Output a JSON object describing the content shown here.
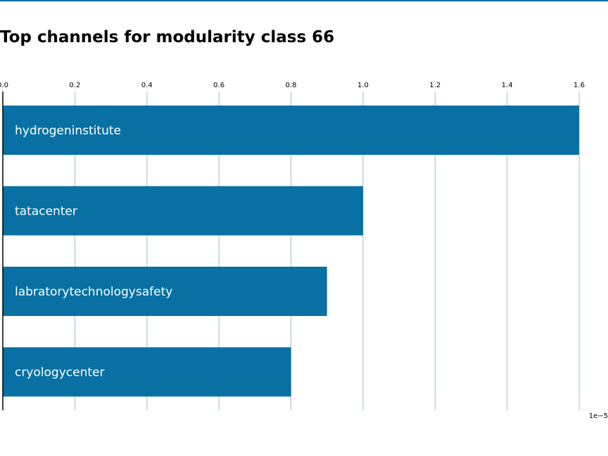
{
  "colors": {
    "bar": "#0870a3",
    "grid": "#9fbfd0",
    "axis": "#000000",
    "top_rule": "#0870a3"
  },
  "chart_data": {
    "type": "bar",
    "orientation": "horizontal",
    "title": "Top channels for modularity class 66",
    "categories": [
      "hydrogeninstitute",
      "tatacenter",
      "labratorytechnologysafety",
      "cryologycenter"
    ],
    "values": [
      1.6e-05,
      1e-05,
      9e-06,
      8e-06
    ],
    "xlim": [
      0,
      1.6e-05
    ],
    "x_ticks": [
      0.0,
      0.2,
      0.4,
      0.6,
      0.8,
      1.0,
      1.2,
      1.4,
      1.6
    ],
    "x_tick_labels": [
      "0.0",
      "0.2",
      "0.4",
      "0.6",
      "0.8",
      "1.0",
      "1.2",
      "1.4",
      "1.6"
    ],
    "x_offset_label": "1e−5",
    "x_axis_position": "top",
    "grid": "vertical",
    "legend": "none"
  }
}
